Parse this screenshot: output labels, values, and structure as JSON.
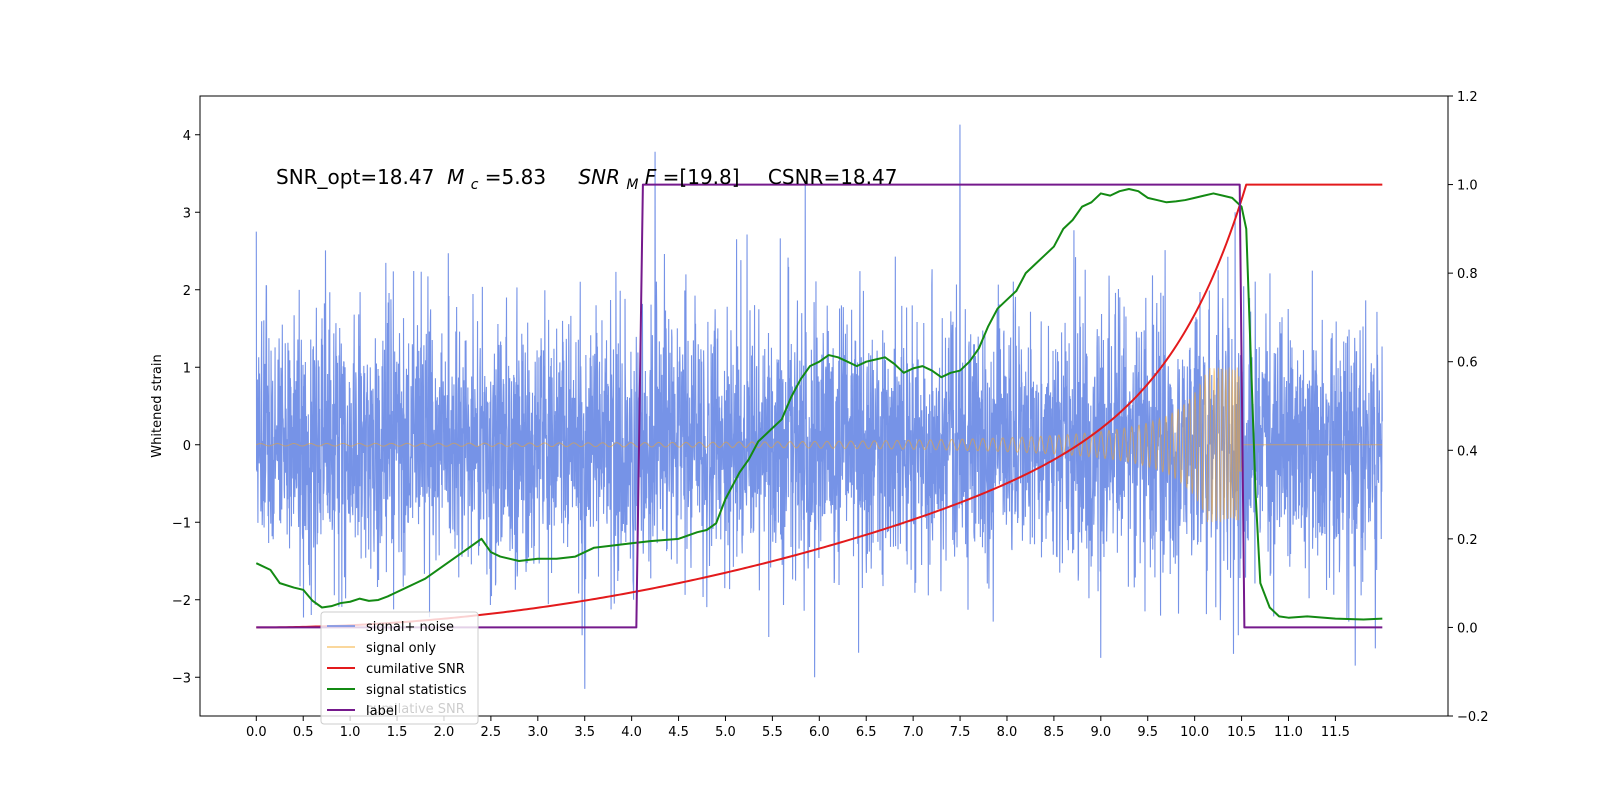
{
  "chart_data": {
    "type": "line",
    "annotation": {
      "prefix": "SNR_opt=18.47 ",
      "mc_symbol": "M",
      "mc_sub": "c",
      "mc_value": "=5.83",
      "snr_symbol": "SNR",
      "snr_sub": "M",
      "snr_f": "F",
      "snr_value": "=[19.8]",
      "csnr": "CSNR=18.47"
    },
    "ylabel": "Whitened strain",
    "xlim": [
      -0.6,
      12.7
    ],
    "ylim": [
      -3.5,
      4.5
    ],
    "y2lim": [
      -0.2,
      1.2
    ],
    "x_ticks": [
      "0.0",
      "0.5",
      "1.0",
      "1.5",
      "2.0",
      "2.5",
      "3.0",
      "3.5",
      "4.0",
      "4.5",
      "5.0",
      "5.5",
      "6.0",
      "6.5",
      "7.0",
      "7.5",
      "8.0",
      "8.5",
      "9.0",
      "9.5",
      "10.0",
      "10.5",
      "11.0",
      "11.5"
    ],
    "y_ticks": [
      "−3",
      "−2",
      "−1",
      "0",
      "1",
      "2",
      "3",
      "4"
    ],
    "y2_ticks": [
      "−0.2",
      "0.0",
      "0.2",
      "0.4",
      "0.6",
      "0.8",
      "1.0",
      "1.2"
    ],
    "series": [
      {
        "name": "signal+ noise",
        "color": "#6f8de6",
        "axis": "left",
        "noise_sigma": 0.85,
        "x_range": [
          0.0,
          12.0
        ],
        "spikes": [
          {
            "x": 0.0,
            "y": 2.75
          },
          {
            "x": 4.25,
            "y": 3.78
          },
          {
            "x": 5.85,
            "y": 3.38
          },
          {
            "x": 7.5,
            "y": 4.13
          },
          {
            "x": 5.95,
            "y": -3.0
          },
          {
            "x": 3.5,
            "y": -3.15
          },
          {
            "x": 9.0,
            "y": -2.75
          }
        ]
      },
      {
        "name": "signal only",
        "color": "#f5a623",
        "axis": "left",
        "t_start": 0.0,
        "t_merge": 10.5,
        "amplitude_at_start": 0.015,
        "amplitude_at_merge": 1.0
      },
      {
        "name": "cumilative SNR",
        "color": "#e31a1c",
        "axis": "right",
        "x": [
          0.0,
          1.0,
          2.0,
          3.0,
          4.0,
          5.0,
          6.0,
          7.0,
          8.0,
          8.5,
          9.0,
          9.5,
          10.0,
          10.25,
          10.45,
          10.55,
          12.0
        ],
        "values": [
          0.0,
          0.0,
          0.01,
          0.04,
          0.1,
          0.16,
          0.22,
          0.29,
          0.38,
          0.43,
          0.5,
          0.59,
          0.72,
          0.8,
          0.92,
          1.0,
          1.0
        ]
      },
      {
        "name": "signal statistics",
        "color": "#138a13",
        "axis": "right",
        "x": [
          0.0,
          0.15,
          0.25,
          0.4,
          0.5,
          0.6,
          0.7,
          0.8,
          0.9,
          1.0,
          1.1,
          1.2,
          1.3,
          1.4,
          1.5,
          1.6,
          1.7,
          1.8,
          1.9,
          2.0,
          2.1,
          2.2,
          2.3,
          2.4,
          2.5,
          2.6,
          2.8,
          3.0,
          3.2,
          3.4,
          3.6,
          3.8,
          4.0,
          4.2,
          4.5,
          4.7,
          4.8,
          4.9,
          5.0,
          5.1,
          5.15,
          5.25,
          5.35,
          5.5,
          5.6,
          5.7,
          5.8,
          5.9,
          6.0,
          6.1,
          6.2,
          6.3,
          6.4,
          6.5,
          6.6,
          6.7,
          6.8,
          6.9,
          7.0,
          7.1,
          7.2,
          7.3,
          7.4,
          7.5,
          7.6,
          7.7,
          7.8,
          7.9,
          8.0,
          8.1,
          8.2,
          8.3,
          8.4,
          8.5,
          8.6,
          8.7,
          8.8,
          8.9,
          9.0,
          9.1,
          9.2,
          9.3,
          9.4,
          9.5,
          9.6,
          9.7,
          9.8,
          9.9,
          10.0,
          10.1,
          10.2,
          10.3,
          10.4,
          10.5,
          10.55,
          10.6,
          10.65,
          10.7,
          10.8,
          10.9,
          11.0,
          11.2,
          11.5,
          11.8,
          12.0
        ],
        "values": [
          0.145,
          0.13,
          0.1,
          0.09,
          0.085,
          0.06,
          0.045,
          0.048,
          0.055,
          0.058,
          0.065,
          0.06,
          0.062,
          0.07,
          0.08,
          0.09,
          0.1,
          0.11,
          0.125,
          0.14,
          0.155,
          0.17,
          0.185,
          0.2,
          0.17,
          0.16,
          0.15,
          0.155,
          0.155,
          0.16,
          0.18,
          0.185,
          0.19,
          0.195,
          0.2,
          0.215,
          0.22,
          0.235,
          0.29,
          0.33,
          0.35,
          0.38,
          0.42,
          0.45,
          0.47,
          0.52,
          0.56,
          0.59,
          0.6,
          0.615,
          0.61,
          0.6,
          0.59,
          0.6,
          0.605,
          0.61,
          0.595,
          0.575,
          0.585,
          0.59,
          0.58,
          0.565,
          0.575,
          0.58,
          0.6,
          0.63,
          0.68,
          0.72,
          0.74,
          0.76,
          0.8,
          0.82,
          0.84,
          0.86,
          0.9,
          0.92,
          0.95,
          0.96,
          0.98,
          0.975,
          0.985,
          0.99,
          0.985,
          0.97,
          0.965,
          0.96,
          0.962,
          0.965,
          0.97,
          0.975,
          0.98,
          0.975,
          0.97,
          0.95,
          0.9,
          0.6,
          0.3,
          0.1,
          0.045,
          0.025,
          0.022,
          0.025,
          0.02,
          0.018,
          0.02
        ]
      },
      {
        "name": "label",
        "color": "#75198c",
        "axis": "right",
        "x": [
          0.0,
          4.05,
          4.12,
          10.48,
          10.53,
          12.0
        ],
        "values": [
          0.0,
          0.0,
          1.0,
          1.0,
          0.0,
          0.0
        ]
      }
    ],
    "legend": {
      "placement": "lower-left",
      "ghost_text": "cumilative SNR"
    },
    "grid": false
  }
}
